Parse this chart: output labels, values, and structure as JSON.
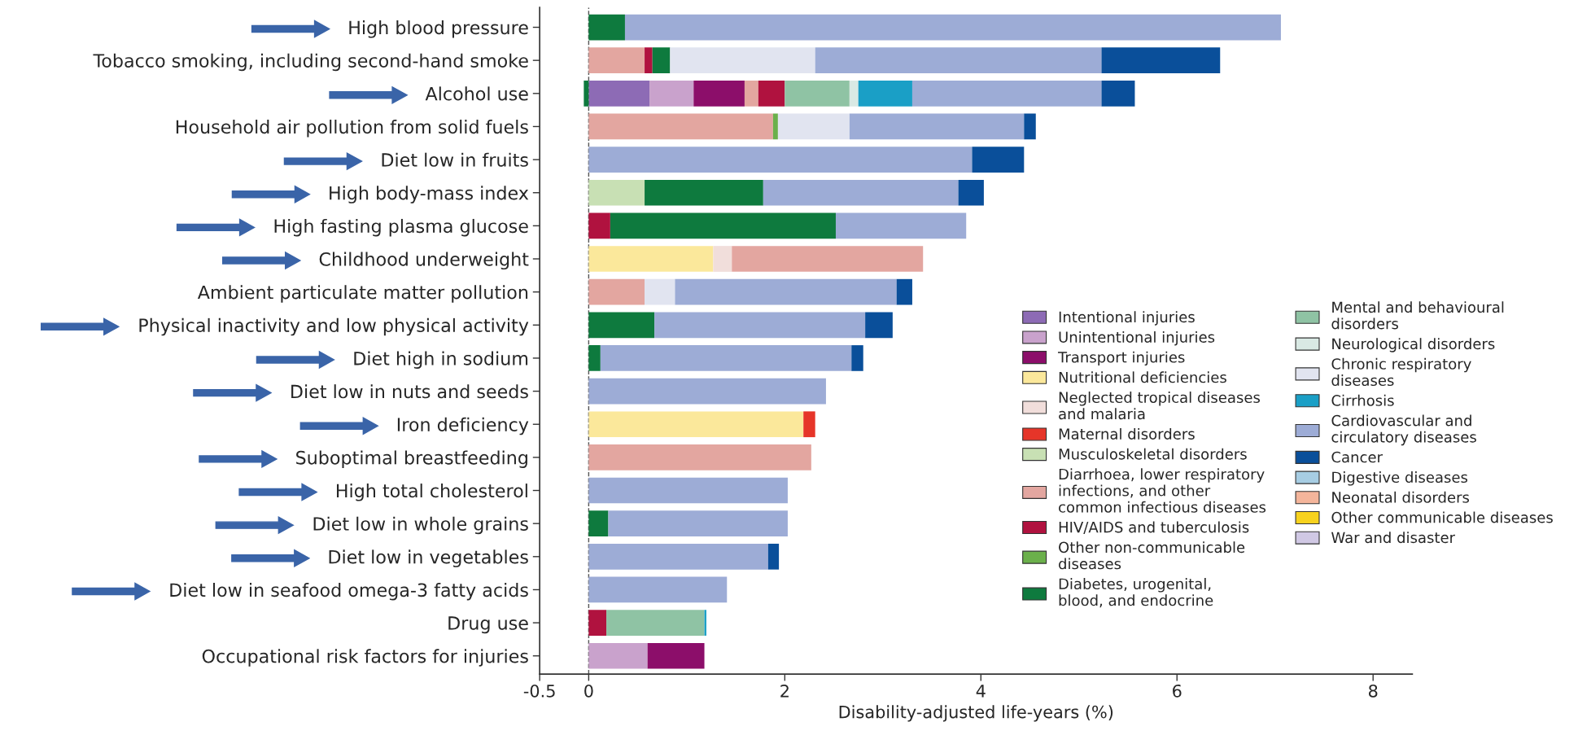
{
  "chart_data": {
    "type": "bar",
    "orientation": "horizontal",
    "stacked": true,
    "xlabel": "Disability-adjusted life-years (%)",
    "categories": [
      "High blood pressure",
      "Tobacco smoking, including second-hand smoke",
      "Alcohol use",
      "Household air pollution from solid fuels",
      "Diet low in fruits",
      "High body-mass index",
      "High fasting plasma glucose",
      "Childhood underweight",
      "Ambient particulate matter pollution",
      "Physical inactivity and low physical activity",
      "Diet high in sodium",
      "Diet low in nuts and seeds",
      "Iron deficiency",
      "Suboptimal breastfeeding",
      "High total cholesterol",
      "Diet low in whole grains",
      "Diet low in vegetables",
      "Diet low in seafood omega-3 fatty acids",
      "Drug use",
      "Occupational risk factors for injuries"
    ],
    "xlim": [
      -0.5,
      8.4
    ],
    "xticks": [
      -0.5,
      0,
      2,
      4,
      6,
      8
    ],
    "ref_lines": [
      {
        "axis": "x",
        "value": 0,
        "line_style": "dashed",
        "color": "#555555"
      }
    ],
    "legend": "bottom right",
    "grid": false,
    "series": [
      {
        "name": "Intentional injuries",
        "color": "#8d6bb5",
        "values": [
          null,
          null,
          0.62,
          null,
          null,
          null,
          null,
          null,
          null,
          null,
          null,
          null,
          null,
          null,
          null,
          null,
          null,
          null,
          null,
          null
        ]
      },
      {
        "name": "Unintentional injuries",
        "color": "#c9a2cc",
        "values": [
          null,
          null,
          0.45,
          null,
          null,
          null,
          null,
          null,
          null,
          null,
          null,
          null,
          null,
          null,
          null,
          null,
          null,
          null,
          null,
          0.6
        ]
      },
      {
        "name": "Transport injuries",
        "color": "#8c0e6a",
        "values": [
          null,
          null,
          0.52,
          null,
          null,
          null,
          null,
          null,
          null,
          null,
          null,
          null,
          null,
          null,
          null,
          null,
          null,
          null,
          null,
          0.58
        ]
      },
      {
        "name": "Nutritional deficiencies",
        "color": "#fbe89b",
        "values": [
          null,
          null,
          null,
          null,
          null,
          null,
          null,
          1.27,
          null,
          null,
          null,
          null,
          2.19,
          null,
          null,
          null,
          null,
          null,
          null,
          null
        ]
      },
      {
        "name": "Neglected tropical diseases\nand malaria",
        "color": "#f1dedb",
        "values": [
          null,
          null,
          null,
          null,
          null,
          null,
          null,
          0.19,
          null,
          null,
          null,
          null,
          null,
          null,
          null,
          null,
          null,
          null,
          null,
          null
        ]
      },
      {
        "name": "Maternal disorders",
        "color": "#e63529",
        "values": [
          null,
          null,
          null,
          null,
          null,
          null,
          null,
          null,
          null,
          null,
          null,
          null,
          0.12,
          null,
          null,
          null,
          null,
          null,
          null,
          null
        ]
      },
      {
        "name": "Musculoskeletal disorders",
        "color": "#c8e0b4",
        "values": [
          null,
          null,
          null,
          null,
          null,
          0.57,
          null,
          null,
          null,
          null,
          null,
          null,
          null,
          null,
          null,
          null,
          null,
          null,
          null,
          null
        ]
      },
      {
        "name": "Diarrhoea, lower respiratory\ninfections, and other\ncommon infectious diseases",
        "color": "#e3a6a0",
        "values": [
          null,
          0.57,
          0.14,
          1.88,
          null,
          null,
          null,
          1.95,
          0.57,
          null,
          null,
          null,
          null,
          2.27,
          null,
          null,
          null,
          null,
          null,
          null
        ]
      },
      {
        "name": "HIV/AIDS and tuberculosis",
        "color": "#b0123f",
        "values": [
          null,
          0.08,
          0.27,
          null,
          null,
          null,
          0.22,
          null,
          null,
          null,
          null,
          null,
          null,
          null,
          null,
          null,
          null,
          null,
          0.18,
          null
        ]
      },
      {
        "name": "Other non-communicable\ndiseases",
        "color": "#6bb04b",
        "values": [
          null,
          null,
          null,
          0.05,
          null,
          null,
          null,
          null,
          null,
          null,
          null,
          null,
          null,
          null,
          null,
          null,
          null,
          null,
          null,
          null
        ]
      },
      {
        "name": "Diabetes, urogenital,\nblood, and endocrine",
        "color": "#0e7a3e",
        "values": [
          0.37,
          0.18,
          -0.05,
          null,
          null,
          1.21,
          2.3,
          null,
          null,
          0.67,
          0.12,
          null,
          null,
          null,
          null,
          0.2,
          null,
          null,
          null,
          null
        ]
      },
      {
        "name": "Mental and behavioural\ndisorders",
        "color": "#8fc3a4",
        "values": [
          null,
          null,
          0.66,
          null,
          null,
          null,
          null,
          null,
          null,
          null,
          null,
          null,
          null,
          null,
          null,
          null,
          null,
          null,
          1.0,
          null
        ]
      },
      {
        "name": "Neurological disorders",
        "color": "#d9e9e4",
        "values": [
          null,
          null,
          0.09,
          null,
          null,
          null,
          null,
          null,
          null,
          null,
          null,
          null,
          null,
          null,
          null,
          null,
          null,
          null,
          null,
          null
        ]
      },
      {
        "name": "Chronic respiratory\ndiseases",
        "color": "#e1e4f0",
        "values": [
          null,
          1.48,
          null,
          0.73,
          null,
          null,
          null,
          null,
          0.31,
          null,
          null,
          null,
          null,
          null,
          null,
          null,
          null,
          null,
          null,
          null
        ]
      },
      {
        "name": "Cirrhosis",
        "color": "#1a9fc6",
        "values": [
          null,
          null,
          0.55,
          null,
          null,
          null,
          null,
          null,
          null,
          null,
          null,
          null,
          null,
          null,
          null,
          null,
          null,
          null,
          0.02,
          null
        ]
      },
      {
        "name": "Cardiovascular and\ncirculatory diseases",
        "color": "#9dacd6",
        "values": [
          6.69,
          2.92,
          1.93,
          1.78,
          3.91,
          1.99,
          1.33,
          null,
          2.26,
          2.15,
          2.56,
          2.42,
          null,
          null,
          2.03,
          1.83,
          1.83,
          1.41,
          null,
          null
        ]
      },
      {
        "name": "Cancer",
        "color": "#0a4f9a",
        "values": [
          null,
          1.21,
          0.34,
          0.12,
          0.53,
          0.26,
          null,
          null,
          0.16,
          0.28,
          0.12,
          null,
          null,
          null,
          null,
          null,
          0.11,
          null,
          null,
          null
        ]
      },
      {
        "name": "Digestive diseases",
        "color": "#a7cde3",
        "values": [
          null,
          null,
          null,
          null,
          null,
          null,
          null,
          null,
          null,
          null,
          null,
          null,
          null,
          null,
          null,
          null,
          null,
          null,
          null,
          null
        ]
      },
      {
        "name": "Neonatal disorders",
        "color": "#f4b59b",
        "values": [
          null,
          null,
          null,
          null,
          null,
          null,
          null,
          null,
          null,
          null,
          null,
          null,
          null,
          null,
          null,
          null,
          null,
          null,
          null,
          null
        ]
      },
      {
        "name": "Other communicable diseases",
        "color": "#f7d21e",
        "values": [
          null,
          null,
          null,
          null,
          null,
          null,
          null,
          null,
          null,
          null,
          null,
          null,
          null,
          null,
          null,
          null,
          null,
          null,
          null,
          null
        ]
      },
      {
        "name": "War and disaster",
        "color": "#d0c8e4",
        "values": [
          null,
          null,
          null,
          null,
          null,
          null,
          null,
          null,
          null,
          null,
          null,
          null,
          null,
          null,
          null,
          null,
          null,
          null,
          null,
          null
        ]
      }
    ]
  }
}
